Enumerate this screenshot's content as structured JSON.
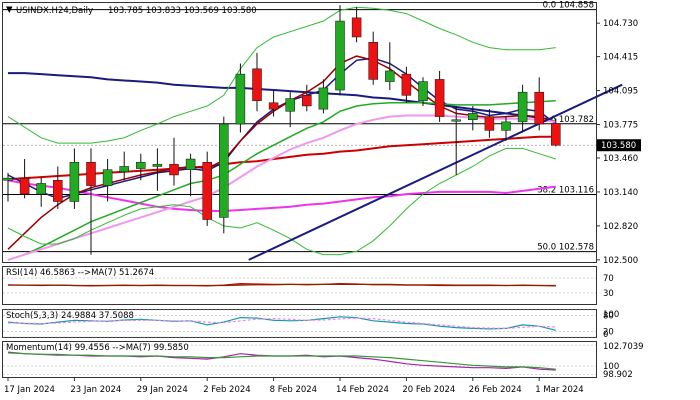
{
  "chart_data": {
    "type": "candlestick",
    "header": {
      "symbol_label": "USINDX.H24,Daily",
      "ohlc_label": "103.785 103.833 103.569 103.580"
    },
    "price_axis": {
      "ticks": [
        "104.730",
        "104.415",
        "104.095",
        "103.775",
        "103.460",
        "103.140",
        "102.820",
        "102.500"
      ],
      "ylim": [
        102.48,
        104.92
      ]
    },
    "current_price": {
      "label": "103.580",
      "value": 103.58
    },
    "fib_levels": [
      {
        "label": "0.0 104.858",
        "value": 104.858
      },
      {
        "label": "23.6 103.782",
        "value": 103.782
      },
      {
        "label": "38.2 103.116",
        "value": 103.116
      },
      {
        "label": "50.0 102.578",
        "value": 102.578
      }
    ],
    "x_labels": [
      {
        "label": "17 Jan 2024",
        "index": 0
      },
      {
        "label": "23 Jan 2024",
        "index": 4
      },
      {
        "label": "29 Jan 2024",
        "index": 8
      },
      {
        "label": "2 Feb 2024",
        "index": 12
      },
      {
        "label": "8 Feb 2024",
        "index": 16
      },
      {
        "label": "14 Feb 2024",
        "index": 20
      },
      {
        "label": "20 Feb 2024",
        "index": 24
      },
      {
        "label": "26 Feb 2024",
        "index": 28
      },
      {
        "label": "1 Mar 2024",
        "index": 32
      }
    ],
    "candles": [
      {
        "o": 103.25,
        "h": 103.32,
        "l": 103.05,
        "c": 103.27
      },
      {
        "o": 103.27,
        "h": 103.45,
        "l": 103.08,
        "c": 103.12
      },
      {
        "o": 103.12,
        "h": 103.28,
        "l": 103.0,
        "c": 103.22
      },
      {
        "o": 103.25,
        "h": 103.38,
        "l": 102.98,
        "c": 103.05
      },
      {
        "o": 103.05,
        "h": 103.55,
        "l": 102.98,
        "c": 103.42
      },
      {
        "o": 103.42,
        "h": 103.55,
        "l": 102.55,
        "c": 103.2
      },
      {
        "o": 103.2,
        "h": 103.45,
        "l": 103.05,
        "c": 103.35
      },
      {
        "o": 103.33,
        "h": 103.52,
        "l": 103.25,
        "c": 103.38
      },
      {
        "o": 103.36,
        "h": 103.5,
        "l": 103.25,
        "c": 103.42
      },
      {
        "o": 103.38,
        "h": 103.55,
        "l": 103.15,
        "c": 103.4
      },
      {
        "o": 103.4,
        "h": 103.65,
        "l": 103.2,
        "c": 103.3
      },
      {
        "o": 103.35,
        "h": 103.5,
        "l": 103.1,
        "c": 103.45
      },
      {
        "o": 103.42,
        "h": 103.52,
        "l": 102.82,
        "c": 102.88
      },
      {
        "o": 102.9,
        "h": 103.85,
        "l": 102.75,
        "c": 103.78
      },
      {
        "o": 103.78,
        "h": 104.35,
        "l": 103.7,
        "c": 104.25
      },
      {
        "o": 104.3,
        "h": 104.45,
        "l": 103.9,
        "c": 104.0
      },
      {
        "o": 103.98,
        "h": 104.1,
        "l": 103.85,
        "c": 103.92
      },
      {
        "o": 103.9,
        "h": 104.08,
        "l": 103.75,
        "c": 104.02
      },
      {
        "o": 104.05,
        "h": 104.15,
        "l": 103.9,
        "c": 103.95
      },
      {
        "o": 103.92,
        "h": 104.2,
        "l": 103.88,
        "c": 104.12
      },
      {
        "o": 104.1,
        "h": 104.9,
        "l": 104.05,
        "c": 104.75
      },
      {
        "o": 104.78,
        "h": 104.88,
        "l": 104.55,
        "c": 104.6
      },
      {
        "o": 104.55,
        "h": 104.65,
        "l": 104.15,
        "c": 104.2
      },
      {
        "o": 104.18,
        "h": 104.55,
        "l": 104.1,
        "c": 104.28
      },
      {
        "o": 104.25,
        "h": 104.32,
        "l": 103.98,
        "c": 104.05
      },
      {
        "o": 104.0,
        "h": 104.22,
        "l": 103.95,
        "c": 104.18
      },
      {
        "o": 104.2,
        "h": 104.28,
        "l": 103.8,
        "c": 103.85
      },
      {
        "o": 103.82,
        "h": 103.95,
        "l": 103.3,
        "c": 103.82
      },
      {
        "o": 103.82,
        "h": 103.95,
        "l": 103.72,
        "c": 103.88
      },
      {
        "o": 103.85,
        "h": 103.92,
        "l": 103.65,
        "c": 103.72
      },
      {
        "o": 103.72,
        "h": 103.85,
        "l": 103.62,
        "c": 103.8
      },
      {
        "o": 103.8,
        "h": 104.15,
        "l": 103.7,
        "c": 104.08
      },
      {
        "o": 104.08,
        "h": 104.22,
        "l": 103.72,
        "c": 103.78
      },
      {
        "o": 103.785,
        "h": 103.833,
        "l": 103.569,
        "c": 103.58
      }
    ],
    "overlays": [
      {
        "color": "#1a1a80",
        "width": 2,
        "values": [
          104.26,
          104.26,
          104.25,
          104.24,
          104.23,
          104.22,
          104.2,
          104.19,
          104.18,
          104.17,
          104.15,
          104.14,
          104.13,
          104.12,
          104.12,
          104.11,
          104.1,
          104.09,
          104.08,
          104.07,
          104.06,
          104.05,
          104.03,
          104.02,
          104.0,
          103.98,
          103.96,
          103.94,
          103.92,
          103.9,
          103.88,
          103.86,
          103.84,
          103.8
        ]
      },
      {
        "color": "#cc0000",
        "width": 2,
        "values": [
          103.26,
          103.27,
          103.28,
          103.29,
          103.3,
          103.31,
          103.32,
          103.33,
          103.34,
          103.35,
          103.36,
          103.37,
          103.38,
          103.4,
          103.42,
          103.43,
          103.45,
          103.47,
          103.49,
          103.5,
          103.52,
          103.53,
          103.55,
          103.57,
          103.58,
          103.59,
          103.6,
          103.61,
          103.62,
          103.63,
          103.64,
          103.65,
          103.66,
          103.66
        ]
      },
      {
        "color": "#ee33ee",
        "width": 2,
        "values": [
          103.25,
          103.22,
          103.2,
          103.18,
          103.15,
          103.12,
          103.09,
          103.06,
          103.03,
          103.0,
          102.98,
          102.97,
          102.96,
          102.96,
          102.97,
          102.98,
          102.99,
          103.0,
          103.02,
          103.03,
          103.05,
          103.07,
          103.09,
          103.1,
          103.12,
          103.13,
          103.14,
          103.14,
          103.14,
          103.14,
          103.13,
          103.15,
          103.17,
          103.19
        ]
      },
      {
        "color": "#1a1a80",
        "width": 1.5,
        "values": [
          103.3,
          103.22,
          103.14,
          103.08,
          103.12,
          103.16,
          103.2,
          103.24,
          103.28,
          103.32,
          103.34,
          103.36,
          103.34,
          103.42,
          103.62,
          103.8,
          103.92,
          104.0,
          104.05,
          104.1,
          104.25,
          104.38,
          104.4,
          104.35,
          104.25,
          104.12,
          104.0,
          103.92,
          103.9,
          103.86,
          103.88,
          103.92,
          103.9,
          103.78
        ]
      },
      {
        "color": "#990000",
        "width": 1.5,
        "values": [
          102.6,
          102.75,
          102.9,
          103.02,
          103.12,
          103.18,
          103.22,
          103.26,
          103.3,
          103.33,
          103.36,
          103.38,
          103.36,
          103.44,
          103.62,
          103.78,
          103.9,
          104.0,
          104.08,
          104.18,
          104.35,
          104.42,
          104.38,
          104.3,
          104.18,
          104.06,
          103.95,
          103.88,
          103.86,
          103.84,
          103.85,
          103.86,
          103.85,
          103.8
        ]
      },
      {
        "color": "#22aa22",
        "width": 1.5,
        "values": [
          102.5,
          102.55,
          102.62,
          102.7,
          102.78,
          102.86,
          102.92,
          102.98,
          103.04,
          103.1,
          103.16,
          103.22,
          103.25,
          103.3,
          103.4,
          103.5,
          103.58,
          103.66,
          103.74,
          103.8,
          103.9,
          103.95,
          103.97,
          103.98,
          103.98,
          103.98,
          103.97,
          103.96,
          103.96,
          103.96,
          103.97,
          103.98,
          103.99,
          104.0
        ]
      },
      {
        "color": "#ee99ee",
        "width": 2,
        "values": [
          102.5,
          102.55,
          102.6,
          102.65,
          102.7,
          102.75,
          102.8,
          102.85,
          102.9,
          102.95,
          103.0,
          103.05,
          103.1,
          103.18,
          103.28,
          103.38,
          103.46,
          103.54,
          103.6,
          103.65,
          103.72,
          103.78,
          103.82,
          103.85,
          103.86,
          103.86,
          103.86,
          103.85,
          103.84,
          103.83,
          103.83,
          103.83,
          103.82,
          103.8
        ]
      },
      {
        "color": "#33bb33",
        "width": 1,
        "values": [
          103.85,
          103.75,
          103.65,
          103.6,
          103.6,
          103.6,
          103.62,
          103.65,
          103.72,
          103.78,
          103.85,
          103.9,
          103.95,
          104.05,
          104.3,
          104.5,
          104.6,
          104.65,
          104.7,
          104.75,
          104.85,
          104.88,
          104.87,
          104.85,
          104.82,
          104.75,
          104.68,
          104.62,
          104.55,
          104.5,
          104.48,
          104.48,
          104.48,
          104.5
        ]
      },
      {
        "color": "#33bb33",
        "width": 1,
        "values": [
          102.8,
          102.72,
          102.65,
          102.65,
          102.7,
          102.78,
          102.85,
          102.92,
          102.98,
          103.0,
          103.02,
          103.0,
          102.9,
          102.82,
          102.8,
          102.85,
          102.78,
          102.7,
          102.6,
          102.55,
          102.55,
          102.58,
          102.68,
          102.82,
          102.98,
          103.12,
          103.22,
          103.3,
          103.38,
          103.48,
          103.55,
          103.55,
          103.5,
          103.45
        ]
      },
      {
        "color": "#1a1a80",
        "width": 2,
        "segment": true,
        "values": [
          {
            "i": 14.5,
            "v": 102.5
          },
          {
            "i": 37,
            "v": 104.15
          }
        ]
      }
    ],
    "indicators": [
      {
        "name": "rsi",
        "label": "RSI(14) 46.5863 -->MA(7) 51.2674",
        "ticks": [
          "70",
          "30"
        ],
        "ylim": [
          0,
          100
        ],
        "tick_values": [
          70,
          30
        ],
        "lines": [
          {
            "color": "#cc0000",
            "values": [
              52,
              51,
              50,
              51,
              50,
              49,
              50,
              51,
              50,
              51,
              50,
              50,
              49,
              51,
              55,
              54,
              53,
              53,
              52,
              53,
              55,
              54,
              52,
              52,
              51,
              51,
              50,
              50,
              50,
              50,
              50,
              51,
              50,
              49
            ]
          },
          {
            "color": "#882200",
            "values": [
              51,
              51,
              51,
              51,
              50,
              50,
              50,
              50,
              50,
              50,
              50,
              50,
              50,
              50,
              51,
              52,
              52,
              53,
              53,
              53,
              53,
              53,
              53,
              53,
              52,
              52,
              52,
              51,
              51,
              51,
              50,
              50,
              50,
              50
            ]
          }
        ]
      },
      {
        "name": "stoch",
        "label": "Stoch(5,3,3) 24.9884 37.5088",
        "ticks": [
          "100",
          "80",
          "20",
          "0"
        ],
        "ylim": [
          0,
          100
        ],
        "tick_values": [
          100,
          80,
          20,
          0
        ],
        "lines": [
          {
            "color": "#1199aa",
            "values": [
              55,
              50,
              48,
              55,
              62,
              60,
              58,
              63,
              65,
              62,
              58,
              60,
              45,
              55,
              72,
              70,
              62,
              60,
              62,
              68,
              75,
              72,
              60,
              55,
              50,
              48,
              40,
              35,
              32,
              30,
              32,
              45,
              40,
              25
            ]
          },
          {
            "color": "#ee88ee",
            "dashed": true,
            "values": [
              52,
              51,
              50,
              52,
              56,
              58,
              60,
              61,
              62,
              62,
              60,
              59,
              55,
              53,
              60,
              66,
              68,
              65,
              62,
              63,
              67,
              70,
              68,
              62,
              55,
              50,
              45,
              40,
              35,
              33,
              32,
              36,
              40,
              37
            ]
          }
        ]
      },
      {
        "name": "momentum",
        "label": "Momentum(14) 99.4556 -->MA(7) 99.5850",
        "ticks": [
          "102.7039",
          "100",
          "98.902"
        ],
        "ylim": [
          98.6,
          103.1
        ],
        "tick_values": [
          102.7039,
          100,
          98.902
        ],
        "lines": [
          {
            "color": "#aa22aa",
            "values": [
              101.8,
              101.6,
              101.5,
              101.4,
              101.4,
              101.3,
              101.3,
              101.3,
              101.2,
              101.3,
              101.1,
              101.0,
              100.9,
              101.2,
              101.6,
              101.4,
              101.3,
              101.3,
              101.4,
              101.2,
              101.3,
              101.1,
              100.9,
              100.6,
              100.3,
              100.1,
              100.0,
              99.9,
              99.8,
              99.8,
              99.7,
              99.9,
              99.6,
              99.5
            ]
          },
          {
            "color": "#339933",
            "values": [
              101.7,
              101.6,
              101.5,
              101.5,
              101.4,
              101.4,
              101.3,
              101.3,
              101.3,
              101.3,
              101.2,
              101.2,
              101.1,
              101.1,
              101.2,
              101.3,
              101.3,
              101.3,
              101.3,
              101.3,
              101.3,
              101.3,
              101.2,
              101.1,
              100.9,
              100.7,
              100.5,
              100.3,
              100.1,
              100.0,
              99.9,
              99.9,
              99.8,
              99.6
            ]
          }
        ]
      }
    ]
  }
}
